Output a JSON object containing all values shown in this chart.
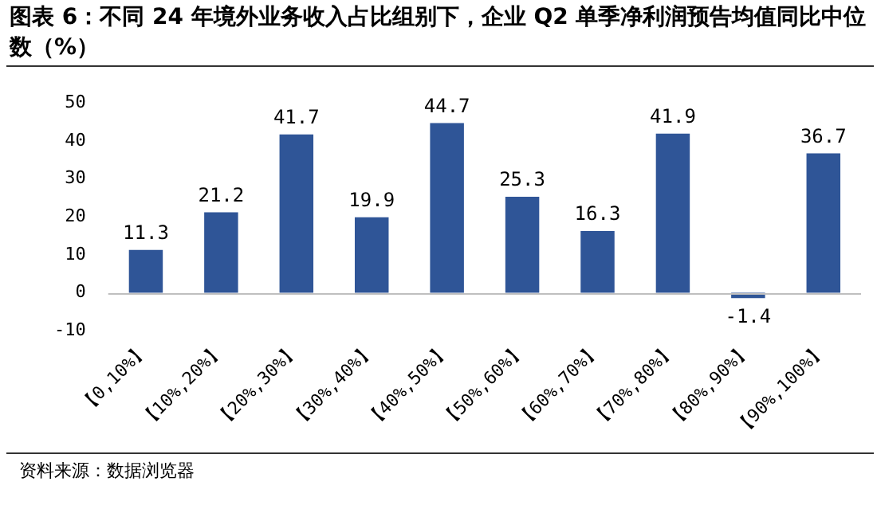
{
  "chart_data": {
    "type": "bar",
    "title": "图表 6：不同 24 年境外业务收入占比组别下，企业 Q2 单季净利润预告均值同比中位数（%）",
    "categories": [
      "【0,10%】",
      "【10%,20%】",
      "【20%,30%】",
      "【30%,40%】",
      "【40%,50%】",
      "【50%,60%】",
      "【60%,70%】",
      "【70%,80%】",
      "【80%,90%】",
      "【90%,100%】"
    ],
    "values": [
      11.3,
      21.2,
      41.7,
      19.9,
      44.7,
      25.3,
      16.3,
      41.9,
      -1.4,
      36.7
    ],
    "color": "#2f5597",
    "ylim": [
      -10,
      50
    ],
    "yticks": [
      -10,
      0,
      10,
      20,
      30,
      40,
      50
    ],
    "grid": false,
    "ref_lines": [
      {
        "axis": "y",
        "value": 0,
        "color": "#bfbfbf"
      }
    ],
    "legend": false,
    "data_labels": true,
    "annotations": [
      "资料来源：数据浏览器"
    ]
  }
}
